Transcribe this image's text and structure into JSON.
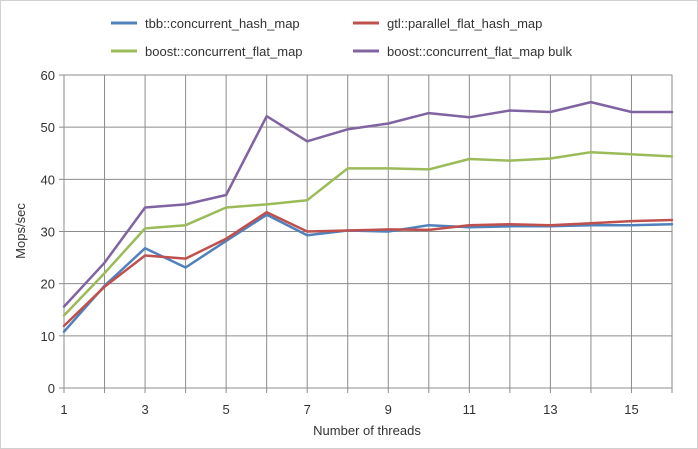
{
  "chart_data": {
    "type": "line",
    "title": "",
    "xlabel": "Number of threads",
    "ylabel": "Mops/sec",
    "xlim": [
      1,
      16
    ],
    "ylim": [
      0,
      60
    ],
    "x_ticks": [
      1,
      3,
      5,
      7,
      9,
      11,
      13,
      15
    ],
    "y_ticks": [
      0,
      10,
      20,
      30,
      40,
      50,
      60
    ],
    "grid": "vertical and horizontal major gridlines",
    "legend_placement": "top",
    "x": [
      1,
      2,
      3,
      4,
      5,
      6,
      7,
      8,
      9,
      10,
      11,
      12,
      13,
      14,
      15,
      16
    ],
    "series": [
      {
        "name": "tbb::concurrent_hash_map",
        "color": "#4f81bd",
        "values": [
          10.8,
          19.6,
          26.8,
          23.1,
          28.2,
          33.2,
          29.3,
          30.2,
          30.0,
          31.2,
          30.8,
          31.0,
          31.0,
          31.2,
          31.2,
          31.4
        ]
      },
      {
        "name": "gtl::parallel_flat_hash_map",
        "color": "#c0504d",
        "values": [
          11.9,
          19.4,
          25.4,
          24.8,
          28.6,
          33.7,
          30.0,
          30.2,
          30.4,
          30.3,
          31.2,
          31.4,
          31.2,
          31.6,
          32.0,
          32.2
        ]
      },
      {
        "name": "boost::concurrent_flat_map",
        "color": "#9bbb59",
        "values": [
          13.9,
          22.0,
          30.6,
          31.2,
          34.6,
          35.2,
          36.0,
          42.1,
          42.1,
          41.9,
          43.9,
          43.6,
          44.0,
          45.2,
          44.8,
          44.4
        ]
      },
      {
        "name": "boost::concurrent_flat_map bulk",
        "color": "#8064a2",
        "values": [
          15.6,
          24.0,
          34.6,
          35.2,
          37.0,
          52.1,
          47.3,
          49.6,
          50.7,
          52.7,
          51.9,
          53.2,
          52.9,
          54.8,
          52.9,
          52.9
        ]
      }
    ]
  }
}
